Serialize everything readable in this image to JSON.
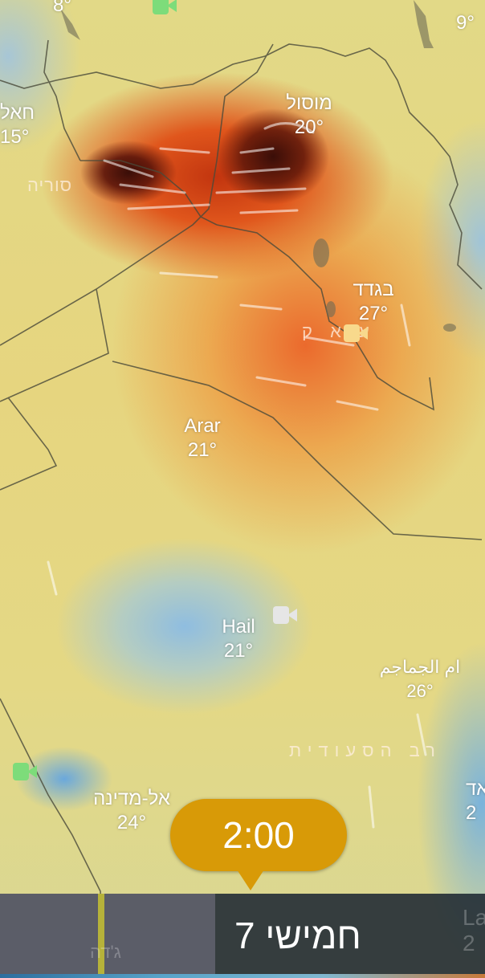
{
  "map": {
    "layer": "wind",
    "colors": {
      "dark_core": "#3a0e08",
      "red": "#c2350f",
      "orange": "#e0561c",
      "yellow": "#e2d987",
      "blue": "#8fbde0"
    },
    "cities": [
      {
        "name": "",
        "temp": "8°"
      },
      {
        "name": "",
        "temp": "9°"
      },
      {
        "name": "חאל",
        "temp": "15°"
      },
      {
        "name": "מוסול",
        "temp": "20°"
      },
      {
        "name": "בגדד",
        "temp": "27°"
      },
      {
        "name": "Arar",
        "temp": "21°"
      },
      {
        "name": "Hail",
        "temp": "21°"
      },
      {
        "name": "ام الجماجم",
        "temp": "26°"
      },
      {
        "name": "אל-מדינה",
        "temp": "24°"
      },
      {
        "name": "אד",
        "temp": "2"
      }
    ],
    "countries": [
      "סוריה",
      "ע א ק",
      "רב הסעודית"
    ],
    "webcams": [
      {
        "icon": "webcam-icon",
        "color": "#7ddc7a"
      },
      {
        "icon": "webcam-icon",
        "color": "#f8d98c"
      },
      {
        "icon": "webcam-icon",
        "color": "#e6e6e6"
      },
      {
        "icon": "webcam-icon",
        "color": "#7ddc7a"
      }
    ]
  },
  "timeline": {
    "time": "2:00",
    "day": "חמישי 7",
    "ghost_labels": [
      "ג'דה",
      "La",
      "2"
    ],
    "accent": "#d89a07"
  }
}
